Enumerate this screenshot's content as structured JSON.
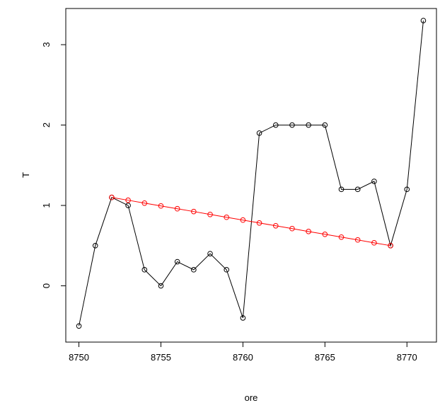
{
  "chart_data": {
    "type": "line",
    "title": "",
    "xlabel": "ore",
    "ylabel": "T",
    "xlim": [
      8749.2,
      8771.8
    ],
    "ylim": [
      -0.7,
      3.45
    ],
    "xticks": [
      8750,
      8755,
      8760,
      8765,
      8770
    ],
    "yticks": [
      0,
      1,
      2,
      3
    ],
    "grid": false,
    "legend": "none",
    "series": [
      {
        "color": "#000000",
        "marker": "open-circle",
        "x": [
          8750,
          8751,
          8752,
          8753,
          8754,
          8755,
          8756,
          8757,
          8758,
          8759,
          8760,
          8761,
          8762,
          8763,
          8764,
          8765,
          8766,
          8767,
          8768,
          8769,
          8770,
          8771
        ],
        "y": [
          -0.5,
          0.5,
          1.1,
          1.0,
          0.2,
          0.0,
          0.3,
          0.2,
          0.4,
          0.2,
          -0.4,
          1.9,
          2.0,
          2.0,
          2.0,
          2.0,
          1.2,
          1.2,
          1.3,
          0.5,
          1.2,
          3.3
        ]
      },
      {
        "color": "#ff0000",
        "marker": "open-circle",
        "x": [
          8752,
          8753,
          8754,
          8755,
          8756,
          8757,
          8758,
          8759,
          8760,
          8761,
          8762,
          8763,
          8764,
          8765,
          8766,
          8767,
          8768,
          8769
        ],
        "y": [
          1.1,
          1.065,
          1.029,
          0.994,
          0.959,
          0.924,
          0.888,
          0.853,
          0.818,
          0.782,
          0.747,
          0.712,
          0.676,
          0.641,
          0.606,
          0.571,
          0.535,
          0.5
        ]
      }
    ]
  }
}
